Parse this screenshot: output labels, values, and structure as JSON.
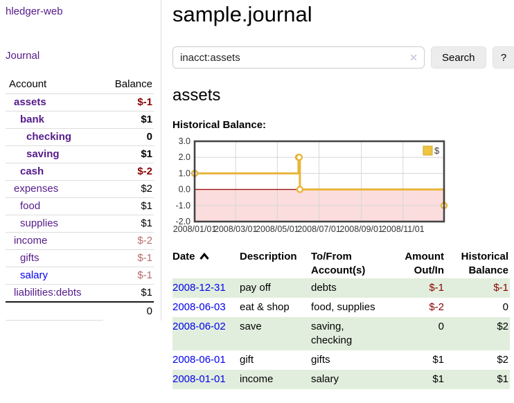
{
  "app": {
    "title": "hledger-web"
  },
  "colors": {
    "link_visited": "#551a8b",
    "link_unvisited": "#0000ee",
    "negative_strong": "#8b0000",
    "negative_faded": "#b96a6a",
    "row_shade": "#e1eedd",
    "button_bg": "#ececec"
  },
  "sidebar": {
    "journal_link": "Journal",
    "accounts_table": {
      "headers": [
        "Account",
        "Balance"
      ],
      "rows": [
        {
          "name": "assets",
          "depth": 0,
          "bold": true,
          "balance": "$-1",
          "negative": "strong"
        },
        {
          "name": "bank",
          "depth": 1,
          "bold": true,
          "balance": "$1"
        },
        {
          "name": "checking",
          "depth": 2,
          "bold": true,
          "balance": "0"
        },
        {
          "name": "saving",
          "depth": 2,
          "bold": true,
          "balance": "$1"
        },
        {
          "name": "cash",
          "depth": 1,
          "bold": true,
          "balance": "$-2",
          "negative": "strong"
        },
        {
          "name": "expenses",
          "depth": 0,
          "bold": false,
          "balance": "$2"
        },
        {
          "name": "food",
          "depth": 1,
          "bold": false,
          "balance": "$1"
        },
        {
          "name": "supplies",
          "depth": 1,
          "bold": false,
          "balance": "$1"
        },
        {
          "name": "income",
          "depth": 0,
          "bold": false,
          "balance": "$-2",
          "negative": "faded"
        },
        {
          "name": "gifts",
          "depth": 1,
          "bold": false,
          "balance": "$-1",
          "negative": "faded"
        },
        {
          "name": "salary",
          "depth": 1,
          "bold": false,
          "balance": "$-1",
          "negative": "faded",
          "link": "unvisited"
        },
        {
          "name": "liabilities:debts",
          "depth": 0,
          "bold": false,
          "balance": "$1"
        }
      ],
      "total": "0"
    }
  },
  "header": {
    "title": "sample.journal"
  },
  "search": {
    "query": "inacct:assets",
    "clear_icon": "✕",
    "search_label": "Search",
    "help_label": "?"
  },
  "account_page": {
    "heading": "assets",
    "chart_label": "Historical Balance:"
  },
  "chart_data": {
    "type": "line",
    "title": "Historical Balance",
    "step": true,
    "x_start": "2008-01-01",
    "x_end": "2008-12-31",
    "ylim": [
      -2,
      3
    ],
    "y_ticks": [
      3.0,
      2.0,
      1.0,
      0.0,
      -1.0,
      -2.0
    ],
    "x_ticks": [
      {
        "date": "2008-01-01",
        "label": "2008/01/01"
      },
      {
        "date": "2008-03-01",
        "label": "2008/03/01"
      },
      {
        "date": "2008-05-01",
        "label": "2008/05/01"
      },
      {
        "date": "2008-07-01",
        "label": "2008/07/01"
      },
      {
        "date": "2008-09-01",
        "label": "2008/09/01"
      },
      {
        "date": "2008-11-01",
        "label": "2008/11/01"
      }
    ],
    "series": [
      {
        "name": "$",
        "color": "#e8b53a",
        "points": [
          [
            "2008-01-01",
            1
          ],
          [
            "2008-06-01",
            2
          ],
          [
            "2008-06-02",
            2
          ],
          [
            "2008-06-03",
            0
          ],
          [
            "2008-12-31",
            -1
          ]
        ]
      }
    ],
    "legend": {
      "label": "$",
      "position": "top-right"
    },
    "grid": true,
    "grid_color": "#d6d6d6",
    "border_color": "#454545",
    "zero_line_color": "#991111",
    "negative_fill": "#fcdddd",
    "tick_label_color": "#333333"
  },
  "register": {
    "columns": [
      {
        "lines": [
          "Date"
        ],
        "align": "left",
        "sorted": "asc"
      },
      {
        "lines": [
          "Description"
        ],
        "align": "left"
      },
      {
        "lines": [
          "To/From",
          "Account(s)"
        ],
        "align": "left"
      },
      {
        "lines": [
          "Amount",
          "Out/In"
        ],
        "align": "right"
      },
      {
        "lines": [
          "Historical",
          "Balance"
        ],
        "align": "right"
      }
    ],
    "rows": [
      {
        "date": "2008-12-31",
        "description": "pay off",
        "accounts": "debts",
        "amount": "$-1",
        "amount_neg": true,
        "balance": "$-1",
        "balance_neg": true,
        "shaded": true
      },
      {
        "date": "2008-06-03",
        "description": "eat & shop",
        "accounts": "food, supplies",
        "amount": "$-2",
        "amount_neg": true,
        "balance": "0",
        "balance_neg": false,
        "shaded": false
      },
      {
        "date": "2008-06-02",
        "description": "save",
        "accounts": "saving, checking",
        "amount": "0",
        "amount_neg": false,
        "balance": "$2",
        "balance_neg": false,
        "shaded": true
      },
      {
        "date": "2008-06-01",
        "description": "gift",
        "accounts": "gifts",
        "amount": "$1",
        "amount_neg": false,
        "balance": "$2",
        "balance_neg": false,
        "shaded": false
      },
      {
        "date": "2008-01-01",
        "description": "income",
        "accounts": "salary",
        "amount": "$1",
        "amount_neg": false,
        "balance": "$1",
        "balance_neg": false,
        "shaded": true
      }
    ]
  }
}
